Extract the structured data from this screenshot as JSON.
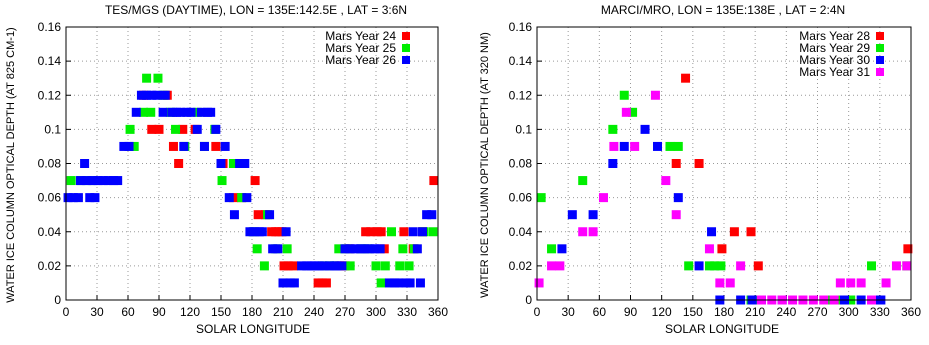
{
  "chart_data": [
    {
      "type": "scatter",
      "title": "TES/MGS (DAYTIME), LON = 135E:142.5E , LAT = 3:6N",
      "xlabel": "SOLAR LONGITUDE",
      "ylabel": "WATER ICE COLUMN OPTICAL DEPTH (AT 825 CM-1)",
      "xlim": [
        0,
        360
      ],
      "ylim": [
        0,
        0.16
      ],
      "xticks": [
        "0",
        "30",
        "60",
        "90",
        "120",
        "150",
        "180",
        "210",
        "240",
        "270",
        "300",
        "330",
        "360"
      ],
      "yticks": [
        "0",
        "0.02",
        "0.04",
        "0.06",
        "0.08",
        "0.1",
        "0.12",
        "0.14",
        "0.16"
      ],
      "grid": true,
      "legend_position": "top-right",
      "series": [
        {
          "name": "Mars Year 24",
          "color": "#ff0000",
          "points": [
            [
              75,
              0.12
            ],
            [
              83,
              0.1
            ],
            [
              90,
              0.1
            ],
            [
              98,
              0.12
            ],
            [
              104,
              0.09
            ],
            [
              109,
              0.08
            ],
            [
              113,
              0.1
            ],
            [
              125,
              0.1
            ],
            [
              145,
              0.09
            ],
            [
              152,
              0.08
            ],
            [
              162,
              0.06
            ],
            [
              170,
              0.06
            ],
            [
              183,
              0.07
            ],
            [
              186,
              0.05
            ],
            [
              193,
              0.05
            ],
            [
              199,
              0.04
            ],
            [
              203,
              0.04
            ],
            [
              206,
              0.04
            ],
            [
              209,
              0.04
            ],
            [
              211,
              0.02
            ],
            [
              215,
              0.02
            ],
            [
              220,
              0.02
            ],
            [
              244,
              0.01
            ],
            [
              248,
              0.01
            ],
            [
              252,
              0.01
            ],
            [
              265,
              0.02
            ],
            [
              270,
              0.02
            ],
            [
              274,
              0.03
            ],
            [
              290,
              0.04
            ],
            [
              295,
              0.04
            ],
            [
              301,
              0.04
            ],
            [
              305,
              0.04
            ],
            [
              308,
              0.03
            ],
            [
              327,
              0.04
            ],
            [
              336,
              0.03
            ],
            [
              345,
              0.04
            ],
            [
              356,
              0.07
            ]
          ]
        },
        {
          "name": "Mars Year 25",
          "color": "#00ee00",
          "points": [
            [
              5,
              0.07
            ],
            [
              15,
              0.07
            ],
            [
              24,
              0.07
            ],
            [
              62,
              0.1
            ],
            [
              66,
              0.09
            ],
            [
              75,
              0.11
            ],
            [
              78,
              0.13
            ],
            [
              82,
              0.11
            ],
            [
              89,
              0.13
            ],
            [
              94,
              0.12
            ],
            [
              101,
              0.11
            ],
            [
              106,
              0.1
            ],
            [
              115,
              0.09
            ],
            [
              127,
              0.11
            ],
            [
              134,
              0.09
            ],
            [
              144,
              0.1
            ],
            [
              151,
              0.07
            ],
            [
              162,
              0.08
            ],
            [
              170,
              0.06
            ],
            [
              181,
              0.04
            ],
            [
              185,
              0.03
            ],
            [
              192,
              0.02
            ],
            [
              195,
              0.05
            ],
            [
              203,
              0.03
            ],
            [
              214,
              0.03
            ],
            [
              248,
              0.02
            ],
            [
              255,
              0.02
            ],
            [
              259,
              0.02
            ],
            [
              264,
              0.03
            ],
            [
              272,
              0.03
            ],
            [
              275,
              0.02
            ],
            [
              286,
              0.03
            ],
            [
              292,
              0.03
            ],
            [
              300,
              0.02
            ],
            [
              305,
              0.01
            ],
            [
              309,
              0.02
            ],
            [
              315,
              0.04
            ],
            [
              323,
              0.02
            ],
            [
              326,
              0.03
            ],
            [
              332,
              0.02
            ],
            [
              337,
              0.03
            ],
            [
              346,
              0.04
            ],
            [
              355,
              0.04
            ]
          ]
        },
        {
          "name": "Mars Year 26",
          "color": "#0000ff",
          "points": [
            [
              2,
              0.06
            ],
            [
              7,
              0.06
            ],
            [
              12,
              0.06
            ],
            [
              18,
              0.08
            ],
            [
              23,
              0.06
            ],
            [
              28,
              0.06
            ],
            [
              14,
              0.07
            ],
            [
              20,
              0.07
            ],
            [
              26,
              0.07
            ],
            [
              31,
              0.07
            ],
            [
              36,
              0.07
            ],
            [
              41,
              0.07
            ],
            [
              46,
              0.07
            ],
            [
              50,
              0.07
            ],
            [
              56,
              0.09
            ],
            [
              61,
              0.09
            ],
            [
              68,
              0.11
            ],
            [
              73,
              0.12
            ],
            [
              78,
              0.12
            ],
            [
              83,
              0.12
            ],
            [
              88,
              0.12
            ],
            [
              94,
              0.11
            ],
            [
              96,
              0.12
            ],
            [
              103,
              0.11
            ],
            [
              107,
              0.11
            ],
            [
              111,
              0.11
            ],
            [
              114,
              0.09
            ],
            [
              117,
              0.11
            ],
            [
              121,
              0.11
            ],
            [
              127,
              0.1
            ],
            [
              131,
              0.11
            ],
            [
              134,
              0.09
            ],
            [
              137,
              0.11
            ],
            [
              140,
              0.11
            ],
            [
              145,
              0.1
            ],
            [
              150,
              0.08
            ],
            [
              154,
              0.09
            ],
            [
              158,
              0.06
            ],
            [
              163,
              0.05
            ],
            [
              168,
              0.08
            ],
            [
              173,
              0.08
            ],
            [
              175,
              0.06
            ],
            [
              178,
              0.04
            ],
            [
              182,
              0.04
            ],
            [
              187,
              0.04
            ],
            [
              190,
              0.04
            ],
            [
              197,
              0.05
            ],
            [
              200,
              0.03
            ],
            [
              205,
              0.03
            ],
            [
              210,
              0.01
            ],
            [
              213,
              0.04
            ],
            [
              217,
              0.01
            ],
            [
              221,
              0.01
            ],
            [
              228,
              0.02
            ],
            [
              233,
              0.02
            ],
            [
              237,
              0.02
            ],
            [
              241,
              0.02
            ],
            [
              245,
              0.02
            ],
            [
              250,
              0.02
            ],
            [
              255,
              0.02
            ],
            [
              260,
              0.02
            ],
            [
              262,
              0.02
            ],
            [
              267,
              0.02
            ],
            [
              270,
              0.03
            ],
            [
              275,
              0.03
            ],
            [
              280,
              0.03
            ],
            [
              285,
              0.03
            ],
            [
              289,
              0.03
            ],
            [
              294,
              0.03
            ],
            [
              299,
              0.03
            ],
            [
              304,
              0.03
            ],
            [
              313,
              0.01
            ],
            [
              318,
              0.01
            ],
            [
              322,
              0.01
            ],
            [
              329,
              0.01
            ],
            [
              333,
              0.01
            ],
            [
              336,
              0.04
            ],
            [
              340,
              0.03
            ],
            [
              343,
              0.01
            ],
            [
              345,
              0.04
            ],
            [
              349,
              0.05
            ],
            [
              354,
              0.05
            ]
          ]
        }
      ]
    },
    {
      "type": "scatter",
      "title": "MARCI/MRO, LON = 135E:138E , LAT = 2:4N",
      "xlabel": "SOLAR LONGITUDE",
      "ylabel": "WATER ICE COLUMN OPTICAL DEPTH (AT 320 NM)",
      "xlim": [
        0,
        360
      ],
      "ylim": [
        0,
        0.16
      ],
      "xticks": [
        "0",
        "30",
        "60",
        "90",
        "120",
        "150",
        "180",
        "210",
        "240",
        "270",
        "300",
        "330",
        "360"
      ],
      "yticks": [
        "0",
        "0.02",
        "0.04",
        "0.06",
        "0.08",
        "0.1",
        "0.12",
        "0.14",
        "0.16"
      ],
      "grid": true,
      "legend_position": "top-right",
      "series": [
        {
          "name": "Mars Year 28",
          "color": "#ff0000",
          "points": [
            [
              134,
              0.08
            ],
            [
              143,
              0.13
            ],
            [
              156,
              0.08
            ],
            [
              178,
              0.03
            ],
            [
              190,
              0.04
            ],
            [
              206,
              0.04
            ],
            [
              213,
              0.02
            ],
            [
              357,
              0.03
            ]
          ]
        },
        {
          "name": "Mars Year 29",
          "color": "#00ee00",
          "points": [
            [
              4,
              0.06
            ],
            [
              14,
              0.03
            ],
            [
              44,
              0.07
            ],
            [
              73,
              0.1
            ],
            [
              84,
              0.12
            ],
            [
              92,
              0.11
            ],
            [
              128,
              0.09
            ],
            [
              136,
              0.09
            ],
            [
              146,
              0.02
            ],
            [
              166,
              0.02
            ],
            [
              171,
              0.02
            ],
            [
              177,
              0.02
            ],
            [
              206,
              0.0
            ],
            [
              214,
              0.0
            ],
            [
              282,
              0.0
            ],
            [
              292,
              0.0
            ],
            [
              302,
              0.0
            ],
            [
              322,
              0.02
            ],
            [
              356,
              0.02
            ]
          ]
        },
        {
          "name": "Mars Year 30",
          "color": "#0000ff",
          "points": [
            [
              24,
              0.03
            ],
            [
              34,
              0.05
            ],
            [
              54,
              0.05
            ],
            [
              73,
              0.08
            ],
            [
              84,
              0.09
            ],
            [
              104,
              0.1
            ],
            [
              116,
              0.09
            ],
            [
              136,
              0.06
            ],
            [
              156,
              0.02
            ],
            [
              168,
              0.04
            ],
            [
              176,
              0.0
            ],
            [
              196,
              0.0
            ],
            [
              207,
              0.0
            ],
            [
              216,
              0.0
            ],
            [
              236,
              0.0
            ],
            [
              296,
              0.0
            ],
            [
              312,
              0.0
            ],
            [
              324,
              0.0
            ],
            [
              331,
              0.0
            ]
          ]
        },
        {
          "name": "Mars Year 31",
          "color": "#ff00ff",
          "points": [
            [
              2,
              0.01
            ],
            [
              14,
              0.02
            ],
            [
              22,
              0.02
            ],
            [
              44,
              0.04
            ],
            [
              54,
              0.04
            ],
            [
              64,
              0.06
            ],
            [
              74,
              0.09
            ],
            [
              86,
              0.11
            ],
            [
              94,
              0.09
            ],
            [
              114,
              0.12
            ],
            [
              124,
              0.07
            ],
            [
              134,
              0.05
            ],
            [
              166,
              0.03
            ],
            [
              176,
              0.01
            ],
            [
              186,
              0.01
            ],
            [
              196,
              0.02
            ],
            [
              216,
              0.0
            ],
            [
              226,
              0.0
            ],
            [
              236,
              0.0
            ],
            [
              246,
              0.0
            ],
            [
              256,
              0.0
            ],
            [
              266,
              0.0
            ],
            [
              276,
              0.0
            ],
            [
              286,
              0.0
            ],
            [
              292,
              0.01
            ],
            [
              302,
              0.01
            ],
            [
              312,
              0.01
            ],
            [
              322,
              0.0
            ],
            [
              336,
              0.01
            ],
            [
              346,
              0.02
            ],
            [
              356,
              0.02
            ]
          ]
        }
      ]
    }
  ]
}
